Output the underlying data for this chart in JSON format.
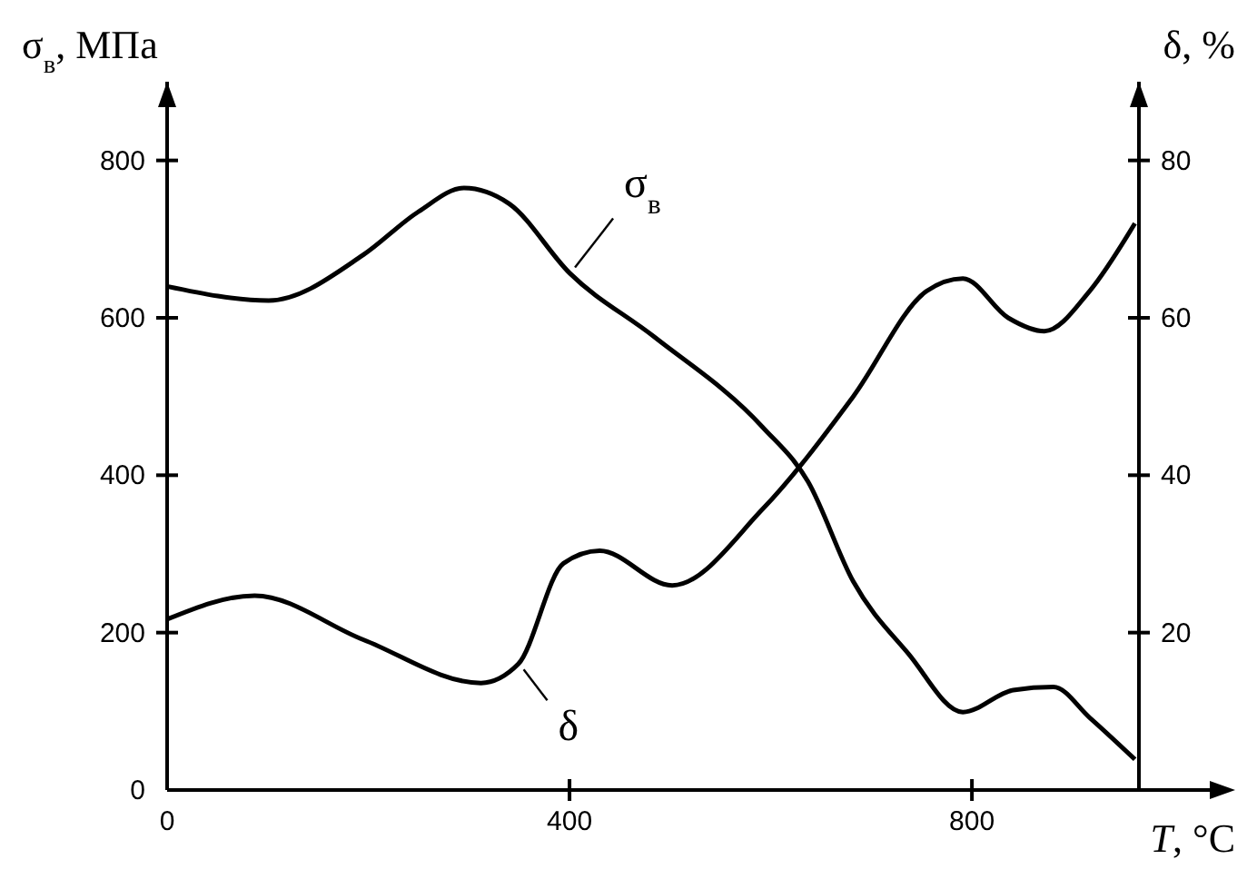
{
  "chart_data": {
    "type": "line",
    "xlabel": "T, °C",
    "ylabel": "σ$_{в}$, МПа",
    "y2label": "δ, %",
    "xlim": [
      0,
      966
    ],
    "xticks": [
      0,
      400,
      800
    ],
    "ylim": [
      0,
      900
    ],
    "yticks": [
      0,
      200,
      400,
      600,
      800
    ],
    "y2lim": [
      0,
      90
    ],
    "y2ticks": [
      20,
      40,
      60,
      80
    ],
    "grid": false,
    "line_style": "solid",
    "series": [
      {
        "name": "σ$_{в}$",
        "color": "#000000",
        "x": [
          0,
          101,
          195,
          250,
          295,
          340,
          400,
          484,
          592,
          637,
          682,
          737,
          791,
          841,
          881,
          917,
          962
        ],
        "values": [
          640,
          622,
          680,
          735,
          765,
          745,
          657,
          576,
          461,
          392,
          265,
          173,
          99,
          127,
          131,
          92,
          39
        ]
      },
      {
        "name": "δ",
        "color": "#000000",
        "axis": "y2",
        "x": [
          0,
          87,
          195,
          312,
          349,
          394,
          430,
          502,
          592,
          682,
          755,
          791,
          836,
          872,
          917,
          962
        ],
        "values": [
          21.7,
          24.7,
          19.1,
          13.6,
          16,
          28.8,
          30.4,
          26,
          35.7,
          50,
          63.4,
          65,
          60,
          58.3,
          63.4,
          72
        ]
      }
    ]
  }
}
